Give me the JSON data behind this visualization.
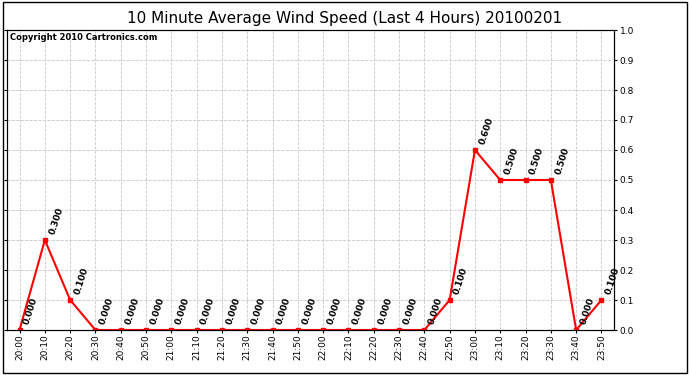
{
  "title": "10 Minute Average Wind Speed (Last 4 Hours) 20100201",
  "copyright_text": "Copyright 2010 Cartronics.com",
  "x_labels": [
    "20:00",
    "20:10",
    "20:20",
    "20:30",
    "20:40",
    "20:50",
    "21:00",
    "21:10",
    "21:20",
    "21:30",
    "21:40",
    "21:50",
    "22:00",
    "22:10",
    "22:20",
    "22:30",
    "22:40",
    "22:50",
    "23:00",
    "23:10",
    "23:20",
    "23:30",
    "23:40",
    "23:50"
  ],
  "y_values": [
    0.0,
    0.3,
    0.1,
    0.0,
    0.0,
    0.0,
    0.0,
    0.0,
    0.0,
    0.0,
    0.0,
    0.0,
    0.0,
    0.0,
    0.0,
    0.0,
    0.0,
    0.1,
    0.6,
    0.5,
    0.5,
    0.5,
    0.0,
    0.1
  ],
  "ylim": [
    0.0,
    1.0
  ],
  "line_color": "#ff0000",
  "marker_color": "#ff0000",
  "bg_color": "#ffffff",
  "grid_color": "#c8c8c8",
  "title_fontsize": 11,
  "label_fontsize": 6.5,
  "annotation_fontsize": 6.5,
  "copyright_fontsize": 6
}
